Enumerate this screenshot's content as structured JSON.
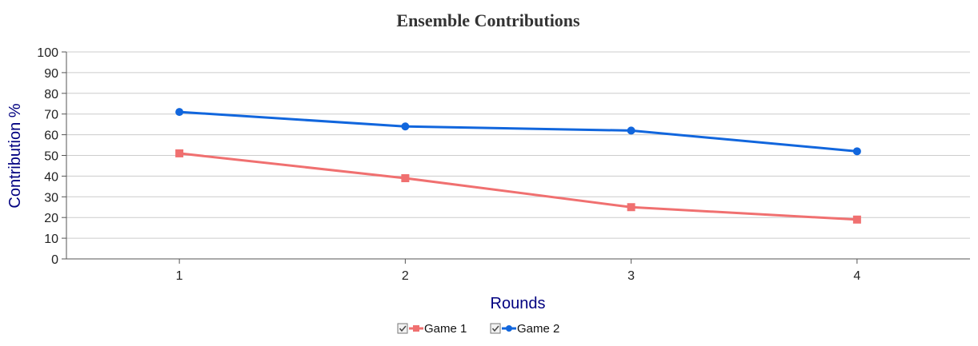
{
  "chart_data": {
    "type": "line",
    "title": "Ensemble Contributions",
    "xlabel": "Rounds",
    "ylabel": "Contribution %",
    "x": [
      1,
      2,
      3,
      4
    ],
    "ylim": [
      0,
      100
    ],
    "yticks": [
      0,
      10,
      20,
      30,
      40,
      50,
      60,
      70,
      80,
      90,
      100
    ],
    "grid": true,
    "legend_position": "bottom-center",
    "series": [
      {
        "name": "Game 1",
        "values": [
          51,
          39,
          25,
          19
        ],
        "color": "#f07070",
        "marker": "square",
        "legend_checked": true
      },
      {
        "name": "Game 2",
        "values": [
          71,
          64,
          62,
          52
        ],
        "color": "#1166dd",
        "marker": "circle",
        "legend_checked": true
      }
    ]
  }
}
